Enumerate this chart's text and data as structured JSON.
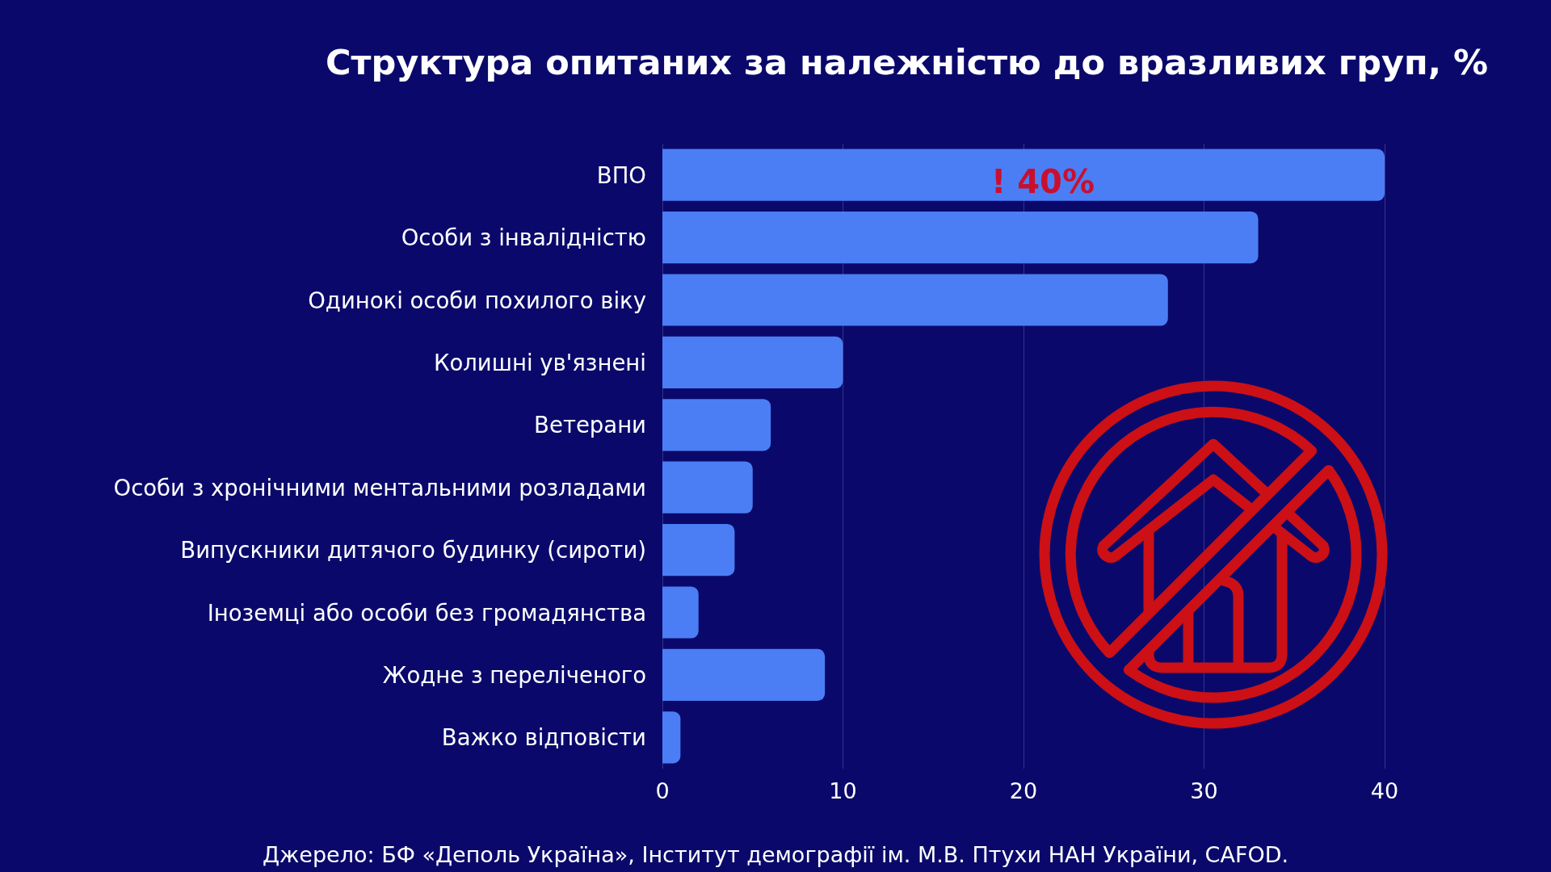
{
  "chart_data": {
    "type": "bar",
    "orientation": "horizontal",
    "title": "Структура опитаних за належністю до вразливих груп, %",
    "categories": [
      "ВПО",
      "Особи з інвалідністю",
      "Одинокі особи похилого віку",
      "Колишні ув'язнені",
      "Ветерани",
      "Особи з хронічними ментальними розладами",
      "Випускники дитячого будинку (сироти)",
      "Іноземці або особи без громадянства",
      "Жодне з переліченого",
      "Важко відповісти"
    ],
    "values": [
      40,
      33,
      28,
      10,
      6,
      5,
      4,
      2,
      9,
      1
    ],
    "color": "#4b7ef5",
    "value_labels": [
      "! 40%",
      null,
      null,
      null,
      null,
      null,
      null,
      null,
      null,
      null
    ],
    "xlim": [
      0,
      40
    ],
    "xticks": [
      0,
      10,
      20,
      30,
      40
    ],
    "grid": "x",
    "annotations": [
      "Джерело: БФ «Деполь Україна», Інститут демографії ім. М.В. Птухи НАН України, CAFOD."
    ]
  }
}
